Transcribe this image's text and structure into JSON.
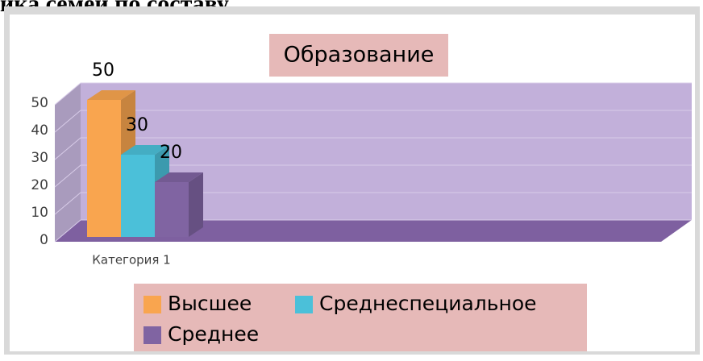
{
  "heading": "ика семей по составу",
  "chart_data": {
    "type": "bar",
    "title": "Образование",
    "categories": [
      "Категория 1"
    ],
    "series": [
      {
        "name": "Высшее",
        "color": "#f9a54f",
        "values": [
          50
        ]
      },
      {
        "name": "Среднеспециальное",
        "color": "#4bc0d9",
        "values": [
          30
        ]
      },
      {
        "name": "Среднее",
        "color": "#8064a2",
        "values": [
          20
        ]
      }
    ],
    "ylim": [
      0,
      50
    ],
    "yticks": [
      0,
      10,
      20,
      30,
      40,
      50
    ],
    "grid": true,
    "legend": "bottom"
  }
}
